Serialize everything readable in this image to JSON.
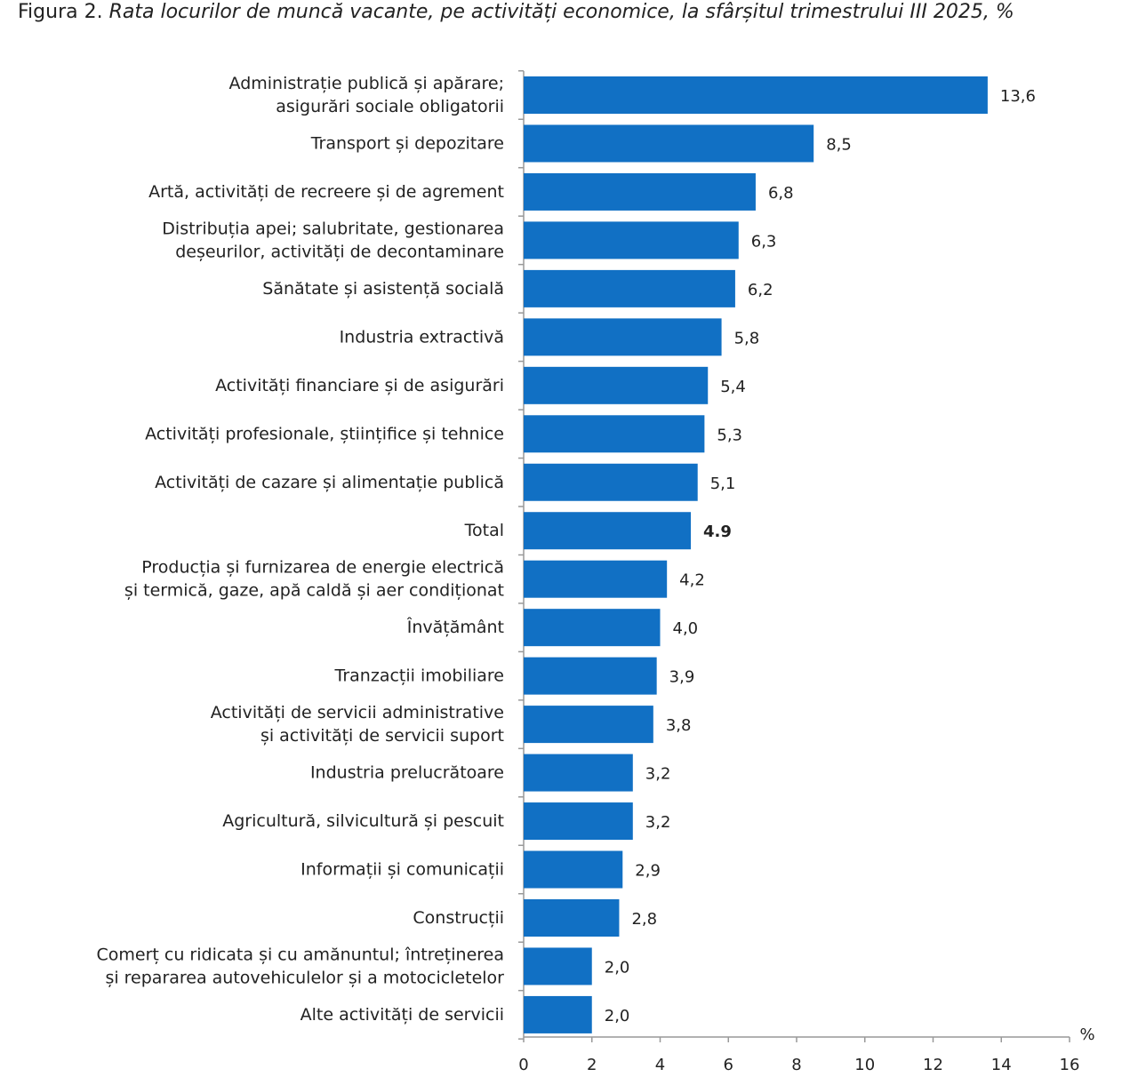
{
  "chart_data": {
    "type": "hbar",
    "title_prefix": "Figura 2.",
    "title": "Rata locurilor de muncă vacante, pe activități economice, la sfârșitul trimestrului III 2025, %",
    "x_unit": "%",
    "categories": [
      "Administrație publică și apărare;\nasigurări sociale obligatorii",
      "Transport și depozitare",
      "Artă, activități de recreere și de agrement",
      "Distribuția apei; salubritate, gestionarea\ndeșeurilor, activități de decontaminare",
      "Sănătate și asistență socială",
      "Industria extractivă",
      "Activități financiare și de asigurări",
      "Activități profesionale, științifice și tehnice",
      "Activități de cazare și alimentație publică",
      "Total",
      "Producția și furnizarea de energie electrică\nși termică, gaze, apă caldă și aer condiționat",
      "Învățământ",
      "Tranzacții imobiliare",
      "Activități de servicii administrative\nși activități de servicii suport",
      "Industria prelucrătoare",
      "Agricultură, silvicultură și pescuit",
      "Informații și comunicații",
      "Construcții",
      "Comerț cu ridicata și cu amănuntul; întreținerea\nși repararea autovehiculelor și a motocicletelor",
      "Alte activități de servicii"
    ],
    "values": [
      13.6,
      8.5,
      6.8,
      6.3,
      6.2,
      5.8,
      5.4,
      5.3,
      5.1,
      4.9,
      4.2,
      4.0,
      3.9,
      3.8,
      3.2,
      3.2,
      2.9,
      2.8,
      2.0,
      2.0
    ],
    "value_labels": [
      "13,6",
      "8,5",
      "6,8",
      "6,3",
      "6,2",
      "5,8",
      "5,4",
      "5,3",
      "5,1",
      "4.9",
      "4,2",
      "4,0",
      "3,9",
      "3,8",
      "3,2",
      "3,2",
      "2,9",
      "2,8",
      "2,0",
      "2,0"
    ],
    "color": "#1170c4",
    "xlim": [
      0,
      16
    ],
    "xticks": [
      0,
      2,
      4,
      6,
      8,
      10,
      12,
      14,
      16
    ]
  }
}
